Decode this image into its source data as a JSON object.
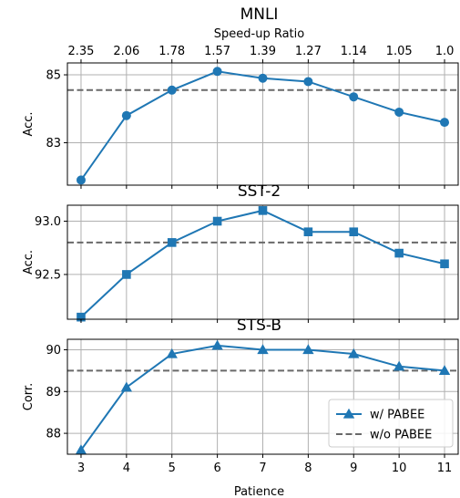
{
  "chart_data": [
    {
      "type": "line",
      "title": "MNLI",
      "ylabel": "Acc.",
      "top_axis_label": "Speed-up Ratio",
      "top_ticks": [
        "2.35",
        "2.06",
        "1.78",
        "1.57",
        "1.39",
        "1.27",
        "1.14",
        "1.05",
        "1.0"
      ],
      "x": [
        3,
        4,
        5,
        6,
        7,
        8,
        9,
        10,
        11
      ],
      "xlim": [
        2.7,
        11.3
      ],
      "ylim": [
        81.75,
        85.35
      ],
      "yticks": [
        83,
        85
      ],
      "marker": "circle",
      "series": [
        {
          "values": [
            81.9,
            83.8,
            84.55,
            85.1,
            84.9,
            84.8,
            84.35,
            83.9,
            83.6
          ]
        }
      ],
      "baseline": 84.55,
      "grid": true
    },
    {
      "type": "line",
      "title": "SST-2",
      "ylabel": "Acc.",
      "x": [
        3,
        4,
        5,
        6,
        7,
        8,
        9,
        10,
        11
      ],
      "xlim": [
        2.7,
        11.3
      ],
      "ylim": [
        92.08,
        93.15
      ],
      "yticks": [
        92.5,
        93.0
      ],
      "ytick_labels": [
        "92.5",
        "93.0"
      ],
      "marker": "square",
      "series": [
        {
          "values": [
            92.1,
            92.5,
            92.8,
            93.0,
            93.1,
            92.9,
            92.9,
            92.7,
            92.6
          ]
        }
      ],
      "baseline": 92.8,
      "grid": true
    },
    {
      "type": "line",
      "title": "STS-B",
      "ylabel": "Corr.",
      "xlabel": "Patience",
      "x": [
        3,
        4,
        5,
        6,
        7,
        8,
        9,
        10,
        11
      ],
      "xticks": [
        "3",
        "4",
        "5",
        "6",
        "7",
        "8",
        "9",
        "10",
        "11"
      ],
      "xlim": [
        2.7,
        11.3
      ],
      "ylim": [
        87.5,
        90.25
      ],
      "yticks": [
        88,
        89,
        90
      ],
      "marker": "triangle",
      "series": [
        {
          "name": "w/ PABEE",
          "values": [
            87.6,
            89.1,
            89.9,
            90.1,
            90.0,
            90.0,
            89.9,
            89.6,
            89.5
          ]
        }
      ],
      "baseline": 89.5,
      "baseline_name": "w/o PABEE",
      "legend": "bottom-right",
      "grid": true
    }
  ],
  "colors": {
    "line": "#1f77b4",
    "baseline": "#696969",
    "grid": "#b0b0b0"
  }
}
